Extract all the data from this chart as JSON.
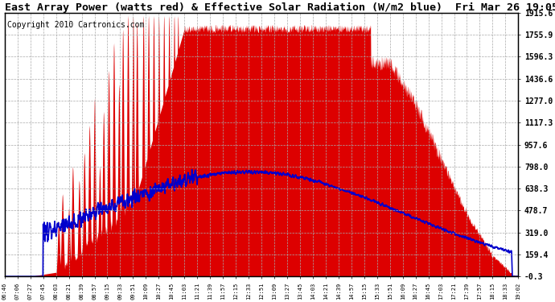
{
  "title": "East Array Power (watts red) & Effective Solar Radiation (W/m2 blue)  Fri Mar 26 19:05",
  "copyright": "Copyright 2010 Cartronics.com",
  "ylabel_right_ticks": [
    -0.3,
    159.4,
    319.0,
    478.7,
    638.3,
    798.0,
    957.6,
    1117.3,
    1277.0,
    1436.6,
    1596.3,
    1755.9,
    1915.6
  ],
  "x_labels": [
    "06:46",
    "07:06",
    "07:27",
    "07:45",
    "08:03",
    "08:21",
    "08:39",
    "08:57",
    "09:15",
    "09:33",
    "09:51",
    "10:09",
    "10:27",
    "10:45",
    "11:03",
    "11:21",
    "11:39",
    "11:57",
    "12:15",
    "12:33",
    "12:51",
    "13:09",
    "13:27",
    "13:45",
    "14:03",
    "14:21",
    "14:39",
    "14:57",
    "15:15",
    "15:33",
    "15:51",
    "16:09",
    "16:27",
    "16:45",
    "17:03",
    "17:21",
    "17:39",
    "17:57",
    "18:15",
    "18:33",
    "19:02"
  ],
  "ymin": -0.3,
  "ymax": 1915.6,
  "bg_color": "#ffffff",
  "grid_color": "#aaaaaa",
  "power_color": "#dd0000",
  "radiation_color": "#0000cc",
  "title_fontsize": 9.5,
  "copyright_fontsize": 7
}
